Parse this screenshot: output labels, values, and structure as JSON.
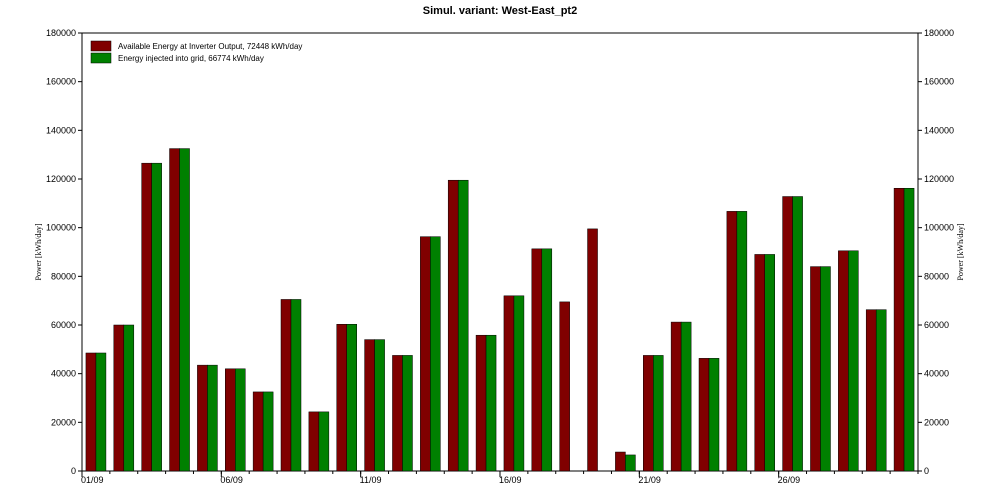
{
  "chart_data": {
    "type": "bar",
    "title": "Simul. variant: West-East_pt2",
    "ylabel_left": "Power  [kWh/day]",
    "ylabel_right": "Power  [kWh/day]",
    "xlabel": "",
    "ylim": [
      0,
      180000
    ],
    "yticks": [
      0,
      20000,
      40000,
      60000,
      80000,
      100000,
      120000,
      140000,
      160000,
      180000
    ],
    "xtick_labels": [
      {
        "day": 1,
        "label": "01/09"
      },
      {
        "day": 6,
        "label": "06/09"
      },
      {
        "day": 11,
        "label": "11/09"
      },
      {
        "day": 16,
        "label": "16/09"
      },
      {
        "day": 21,
        "label": "21/09"
      },
      {
        "day": 26,
        "label": "26/09"
      }
    ],
    "categories": [
      "01/09",
      "02/09",
      "03/09",
      "04/09",
      "05/09",
      "06/09",
      "07/09",
      "08/09",
      "09/09",
      "10/09",
      "11/09",
      "12/09",
      "13/09",
      "14/09",
      "15/09",
      "16/09",
      "17/09",
      "18/09",
      "19/09",
      "20/09",
      "21/09",
      "22/09",
      "23/09",
      "24/09",
      "25/09",
      "26/09",
      "27/09",
      "28/09",
      "29/09",
      "30/09"
    ],
    "legend_position": "top-left",
    "grid": false,
    "series": [
      {
        "name": "Available Energy at Inverter Output,  72448 kWh/day",
        "color": "#800000",
        "values": [
          48500,
          60000,
          126500,
          132500,
          43500,
          42000,
          32500,
          70500,
          24300,
          60300,
          54000,
          47500,
          96300,
          119500,
          55800,
          72000,
          91300,
          69500,
          99500,
          7800,
          47500,
          61200,
          46300,
          106700,
          89000,
          112800,
          84000,
          90500,
          66300,
          116200
        ]
      },
      {
        "name": "Energy injected into grid,  66774 kWh/day",
        "color": "#008000",
        "values": [
          48500,
          60000,
          126500,
          132500,
          43500,
          42000,
          32500,
          70500,
          24300,
          60300,
          54000,
          47500,
          96300,
          119500,
          55800,
          72000,
          91300,
          0,
          0,
          6600,
          47500,
          61200,
          46300,
          106700,
          89000,
          112800,
          84000,
          90500,
          66300,
          116200
        ]
      }
    ]
  }
}
